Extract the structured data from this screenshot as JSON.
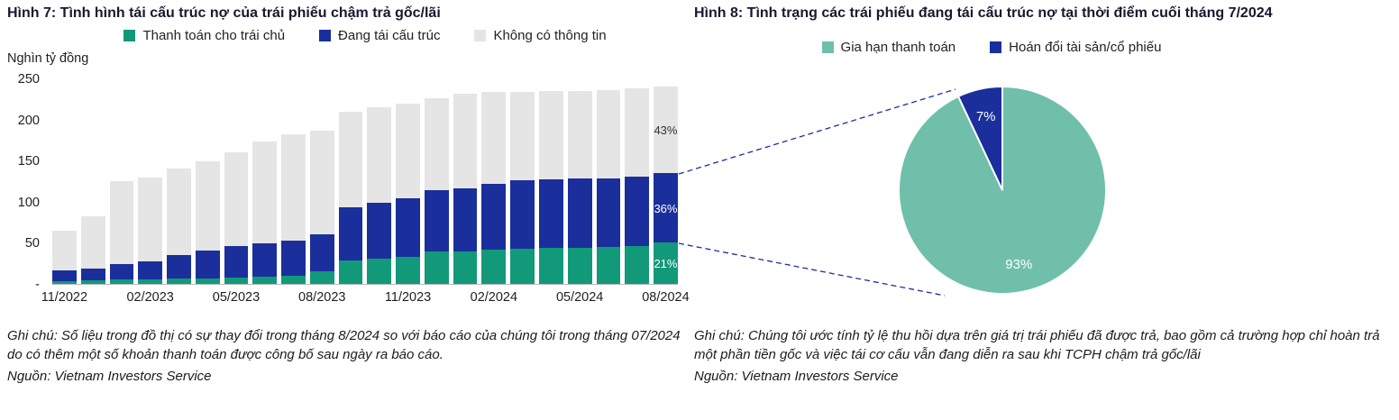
{
  "figure7": {
    "title": "Hình 7: Tình hình tái cấu trúc nợ của trái phiếu chậm trả gốc/lãi",
    "unit_label": "Nghìn tỷ đồng",
    "note": "Ghi chú: Số liệu trong đồ thị có sự thay đổi trong tháng 8/2024 so với báo cáo của chúng tôi trong tháng 07/2024 do có thêm một số khoản thanh toán được công bố sau ngày ra báo cáo.",
    "source": "Nguồn: Vietnam Investors Service"
  },
  "figure8": {
    "title": "Hình 8: Tình trạng các trái phiếu đang tái cấu trúc nợ tại thời điểm cuối tháng 7/2024",
    "note": "Ghi chú: Chúng tôi ước tính tỷ lệ thu hồi dựa trên giá trị trái phiếu đã được trả, bao gồm cả trường hợp chỉ hoàn trả một phần tiền gốc và việc tái cơ cấu vẫn đang diễn ra sau khi TCPH chậm trả gốc/lãi",
    "source": "Nguồn: Vietnam Investors Service"
  },
  "chart_data": [
    {
      "type": "bar",
      "stacked": true,
      "title": "Hình 7: Tình hình tái cấu trúc nợ của trái phiếu chậm trả gốc/lãi",
      "ylabel": "Nghìn tỷ đồng",
      "ylim": [
        0,
        250
      ],
      "yticks": [
        "250",
        "200",
        "150",
        "100",
        "50",
        "-"
      ],
      "grid": false,
      "legend_position": "top",
      "categories": [
        "11/2022",
        "12/2022",
        "01/2023",
        "02/2023",
        "03/2023",
        "04/2023",
        "05/2023",
        "06/2023",
        "07/2023",
        "08/2023",
        "09/2023",
        "10/2023",
        "11/2023",
        "12/2023",
        "01/2024",
        "02/2024",
        "03/2024",
        "04/2024",
        "05/2024",
        "06/2024",
        "07/2024",
        "08/2024"
      ],
      "x_tick_labels": [
        "11/2022",
        "02/2023",
        "05/2023",
        "08/2023",
        "11/2023",
        "02/2024",
        "05/2024",
        "08/2024"
      ],
      "series": [
        {
          "name": "Thanh toán cho trái chủ",
          "color": "#12997A",
          "values": [
            3,
            4,
            5,
            6,
            7,
            7,
            8,
            9,
            10,
            15,
            28,
            31,
            33,
            40,
            40,
            42,
            43,
            44,
            44,
            45,
            46,
            50
          ]
        },
        {
          "name": "Đang tái cấu trúc",
          "color": "#1A2F9B",
          "values": [
            13,
            15,
            19,
            21,
            28,
            34,
            38,
            40,
            43,
            45,
            65,
            68,
            71,
            74,
            76,
            80,
            83,
            83,
            84,
            83,
            84,
            85
          ]
        },
        {
          "name": "Không có thông tin",
          "color": "#E5E5E5",
          "values": [
            49,
            63,
            101,
            102,
            105,
            108,
            114,
            124,
            129,
            126,
            116,
            116,
            115,
            112,
            115,
            112,
            108,
            108,
            107,
            108,
            108,
            105
          ]
        }
      ],
      "last_bar_labels": [
        {
          "text": "21%",
          "color": "#ffffff"
        },
        {
          "text": "36%",
          "color": "#ffffff"
        },
        {
          "text": "43%",
          "color": "#333333"
        }
      ]
    },
    {
      "type": "pie",
      "title": "Hình 8: Tình trạng các trái phiếu đang tái cấu trúc nợ tại thời điểm cuối tháng 7/2024",
      "legend_position": "top",
      "slices": [
        {
          "label": "Gia hạn thanh toán",
          "value": 93,
          "display": "93%",
          "color": "#6FBFAB",
          "text_color": "#ffffff"
        },
        {
          "label": "Hoán đổi tài sản/cổ phiếu",
          "value": 7,
          "display": "7%",
          "color": "#1A2F9B",
          "text_color": "#ffffff"
        }
      ]
    }
  ]
}
